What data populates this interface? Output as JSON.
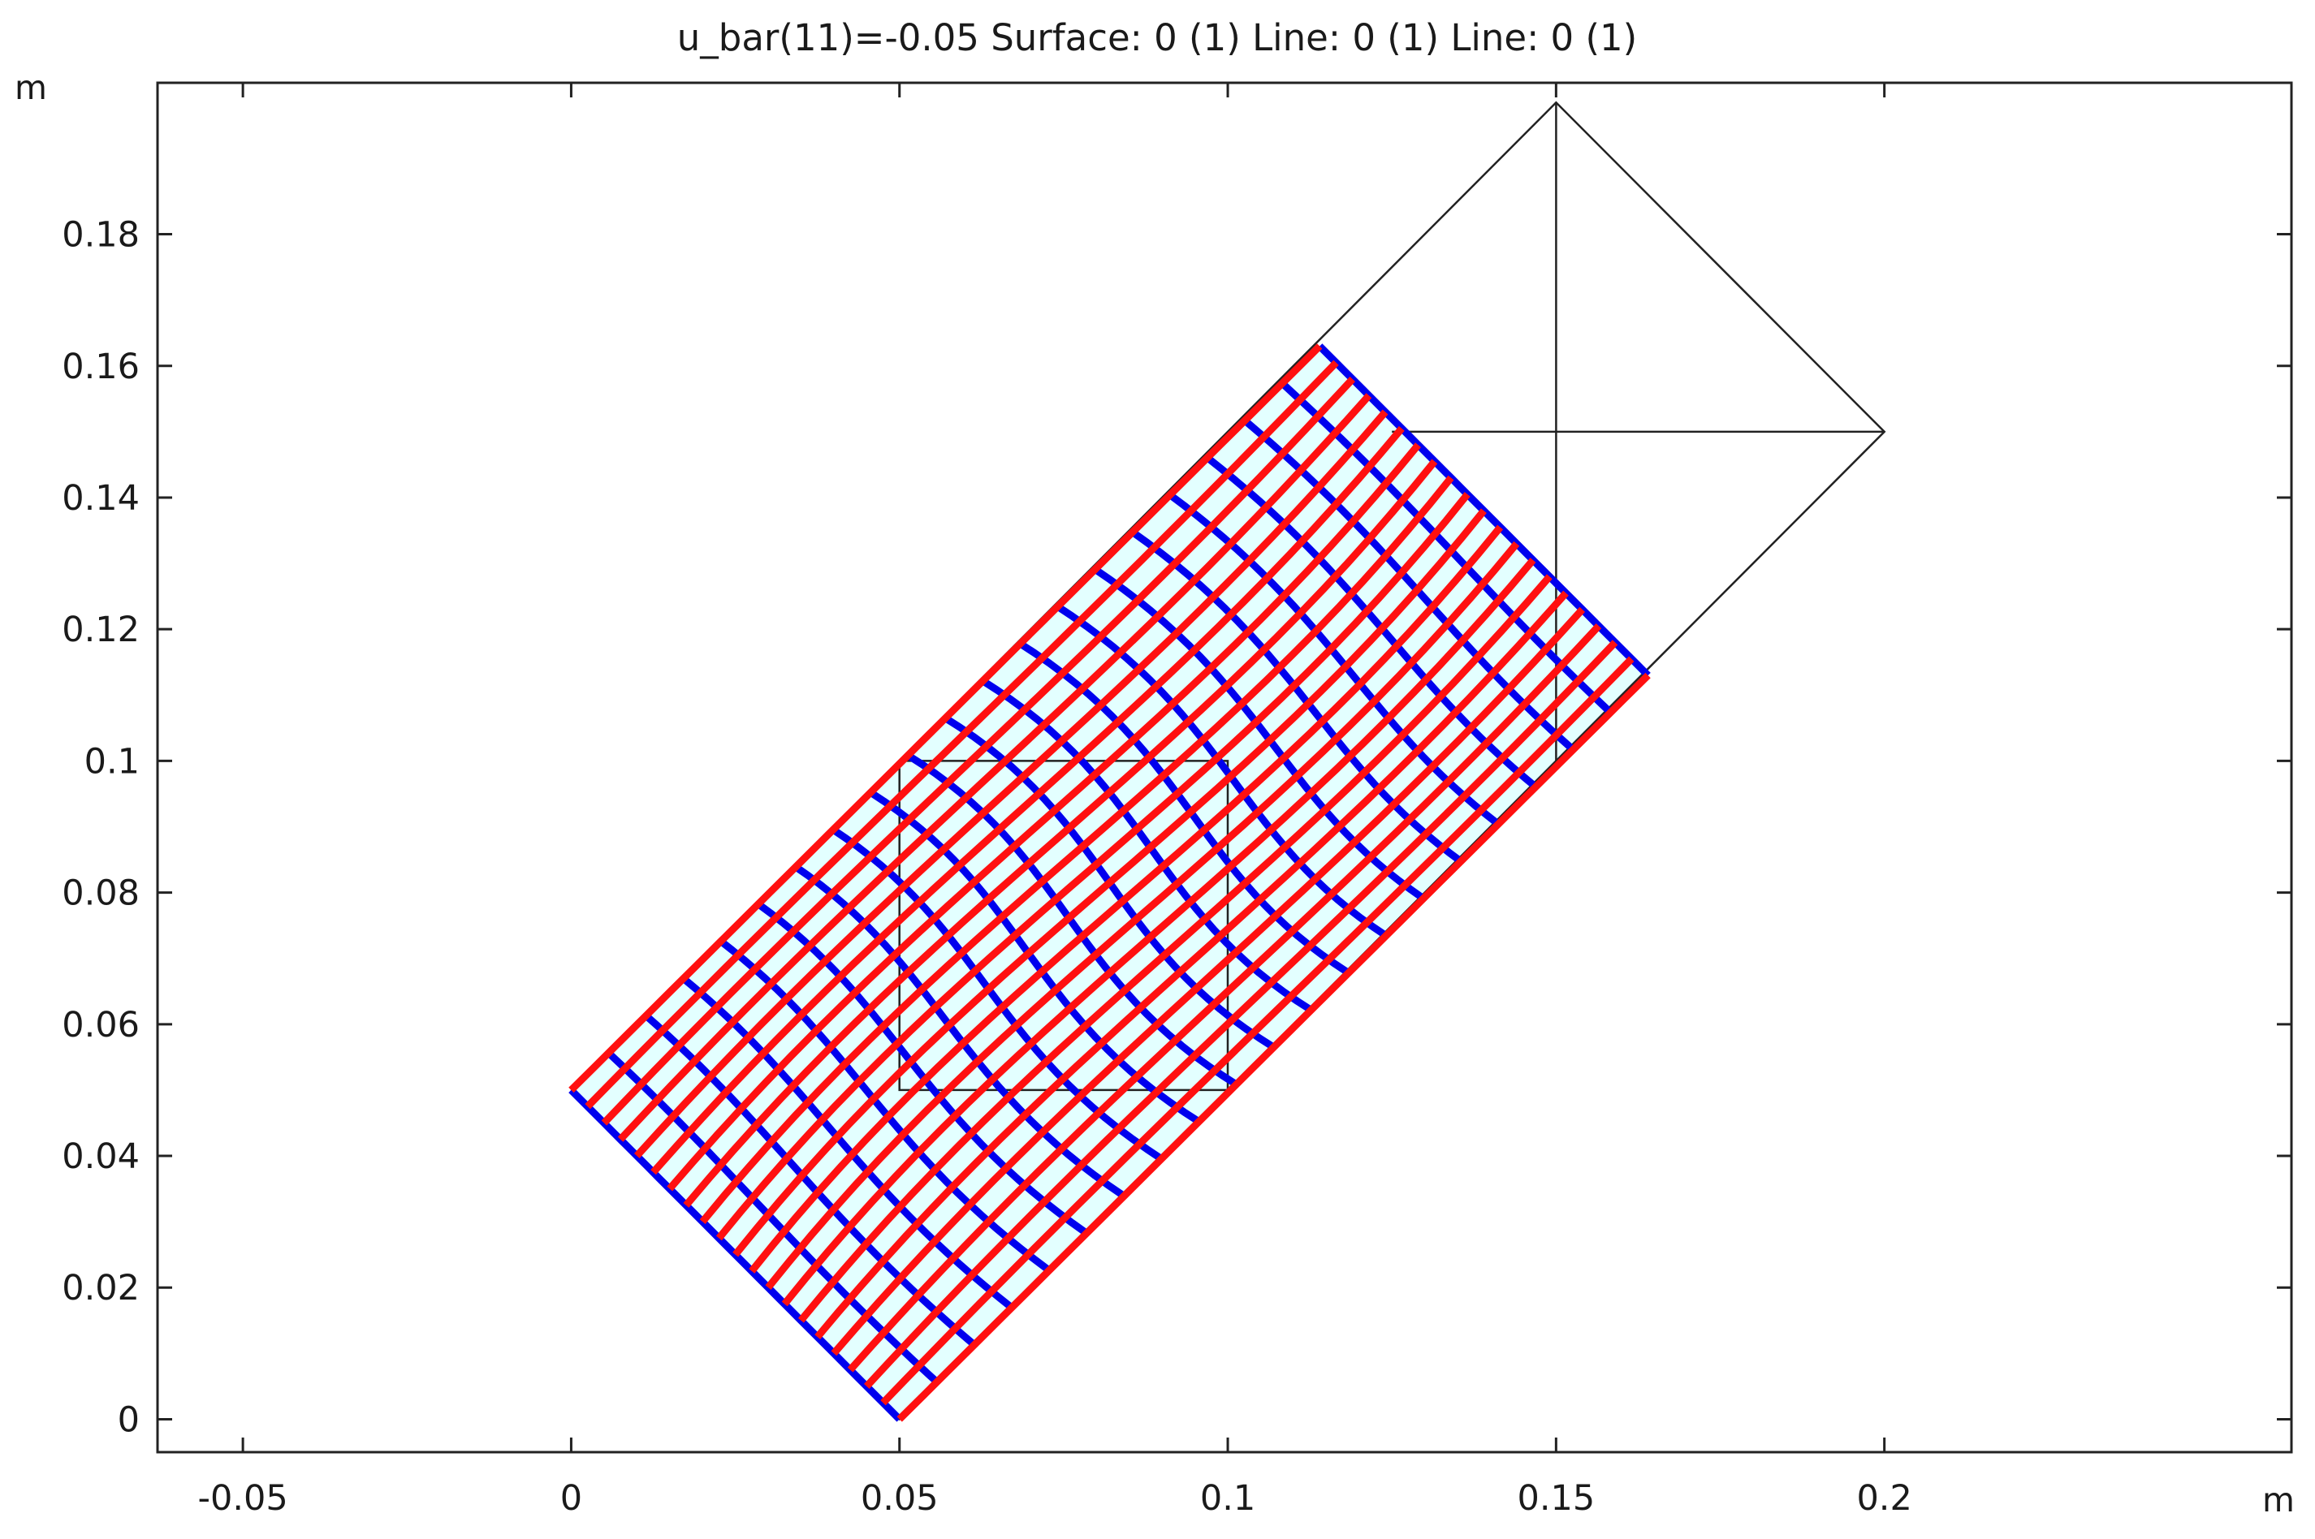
{
  "chart_data": {
    "type": "surface",
    "title": "u_bar(11)=-0.05   Surface: 0 (1)  Line: 0 (1)  Line: 0 (1)",
    "x_unit": "m",
    "y_unit": "m",
    "xlim": [
      -0.063,
      0.262
    ],
    "ylim": [
      -0.005,
      0.203
    ],
    "x_ticks": [
      -0.05,
      0,
      0.05,
      0.1,
      0.15,
      0.2
    ],
    "x_tick_labels": [
      "-0.05",
      "0",
      "0.05",
      "0.1",
      "0.15",
      "0.2"
    ],
    "y_ticks": [
      0,
      0.02,
      0.04,
      0.06,
      0.08,
      0.1,
      0.12,
      0.14,
      0.16,
      0.18
    ],
    "y_tick_labels": [
      "0",
      "0.02",
      "0.04",
      "0.06",
      "0.08",
      "0.1",
      "0.12",
      "0.14",
      "0.16",
      "0.18"
    ],
    "geometry_outline": [
      [
        [
          0,
          0.05
        ],
        [
          0.05,
          0
        ],
        [
          0.2,
          0.15
        ],
        [
          0.15,
          0.2
        ],
        [
          0,
          0.05
        ]
      ],
      [
        [
          0.15,
          0.2
        ],
        [
          0.15,
          0.1
        ]
      ],
      [
        [
          0.125,
          0.15
        ],
        [
          0.2,
          0.15
        ]
      ],
      [
        [
          0.05,
          0.1
        ],
        [
          0.1,
          0.1
        ],
        [
          0.1,
          0.05
        ],
        [
          0.05,
          0.05
        ],
        [
          0.05,
          0.1
        ]
      ]
    ],
    "deformed_region_corners": {
      "left": [
        0,
        0.05
      ],
      "bottom": [
        0.05,
        0
      ],
      "right": [
        0.164,
        0.113
      ],
      "top": [
        0.114,
        0.163
      ]
    },
    "grid": false,
    "colors": {
      "surface": "#e3ffff",
      "blue_lines": "#0000ee",
      "red_lines": "#ff1010",
      "outline": "#222222"
    }
  }
}
